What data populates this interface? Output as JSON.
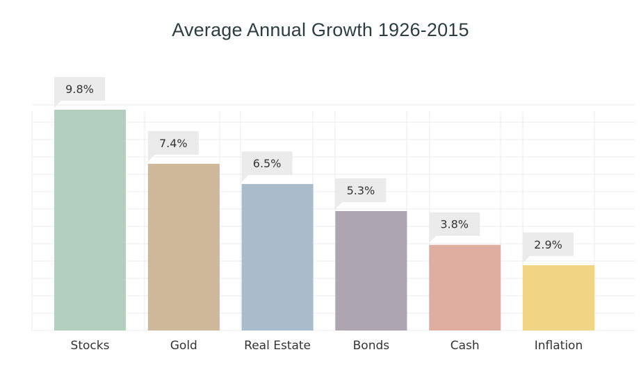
{
  "chart_data": {
    "type": "bar",
    "title": "Average Annual Growth 1926-2015",
    "categories": [
      "Stocks",
      "Gold",
      "Real Estate",
      "Bonds",
      "Cash",
      "Inflation"
    ],
    "values": [
      9.8,
      7.4,
      6.5,
      5.3,
      3.8,
      2.9
    ],
    "data_labels": [
      "9.8%",
      "7.4%",
      "6.5%",
      "5.3%",
      "3.8%",
      "2.9%"
    ],
    "bar_colors": [
      "#b3cfbf",
      "#cdb89a",
      "#a8bccb",
      "#ada5b0",
      "#dfaea0",
      "#f1d584"
    ],
    "highlight_label_color": "#c4501e",
    "label_box_color": "#ebebeb",
    "grid_color": "#ececec",
    "grid": true,
    "legend": "none",
    "xlabel": "",
    "ylabel": "",
    "ylim": [
      0,
      9.8
    ]
  }
}
